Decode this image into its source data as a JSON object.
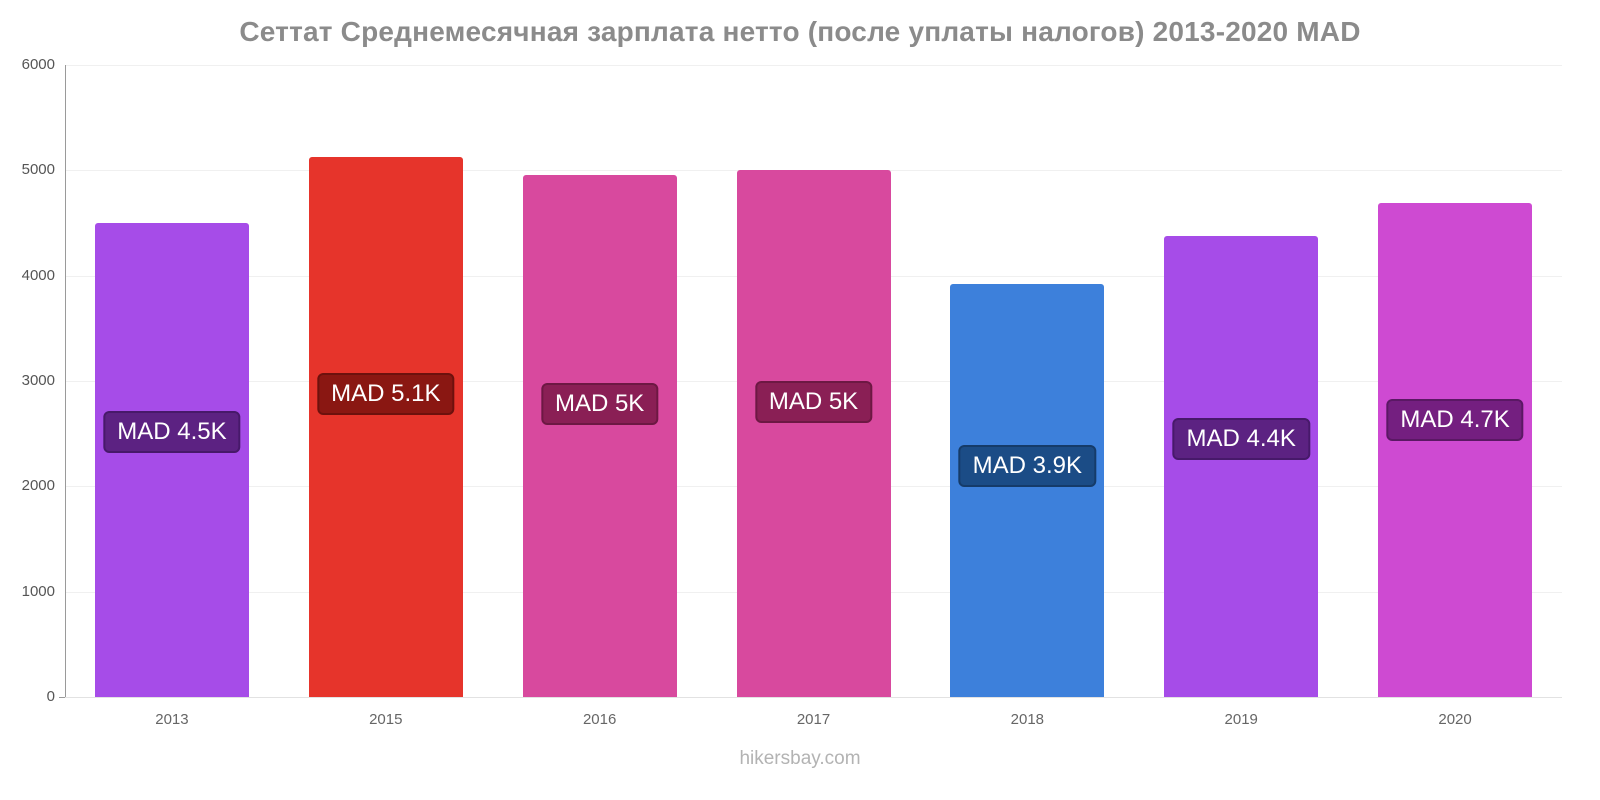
{
  "footer": "hikersbay.com",
  "chart_data": {
    "type": "bar",
    "title": "Сеттат Среднемесячная зарплата нетто (после уплаты налогов) 2013-2020 MAD",
    "xlabel": "",
    "ylabel": "",
    "ylim": [
      0,
      6000
    ],
    "yticks": [
      0,
      1000,
      2000,
      3000,
      4000,
      5000,
      6000
    ],
    "grid": true,
    "legend": false,
    "label_center_fraction": 0.56,
    "bars": [
      {
        "category": "2013",
        "value": 4500,
        "label": "MAD 4.5K",
        "color": "#a64ce8",
        "label_bg": "#5c2282",
        "label_border": "#47196a"
      },
      {
        "category": "2015",
        "value": 5130,
        "label": "MAD 5.1K",
        "color": "#e6342b",
        "label_bg": "#8a1712",
        "label_border": "#6d110d"
      },
      {
        "category": "2016",
        "value": 4960,
        "label": "MAD 5K",
        "color": "#d8499e",
        "label_bg": "#8a1f55",
        "label_border": "#6d1843"
      },
      {
        "category": "2017",
        "value": 5000,
        "label": "MAD 5K",
        "color": "#d8499e",
        "label_bg": "#8a1f55",
        "label_border": "#6d1843"
      },
      {
        "category": "2018",
        "value": 3920,
        "label": "MAD 3.9K",
        "color": "#3d80db",
        "label_bg": "#1b4c86",
        "label_border": "#153b69"
      },
      {
        "category": "2019",
        "value": 4380,
        "label": "MAD 4.4K",
        "color": "#a64ce8",
        "label_bg": "#5c2282",
        "label_border": "#47196a"
      },
      {
        "category": "2020",
        "value": 4690,
        "label": "MAD 4.7K",
        "color": "#ce4ad2",
        "label_bg": "#741f80",
        "label_border": "#5a1864"
      }
    ]
  }
}
